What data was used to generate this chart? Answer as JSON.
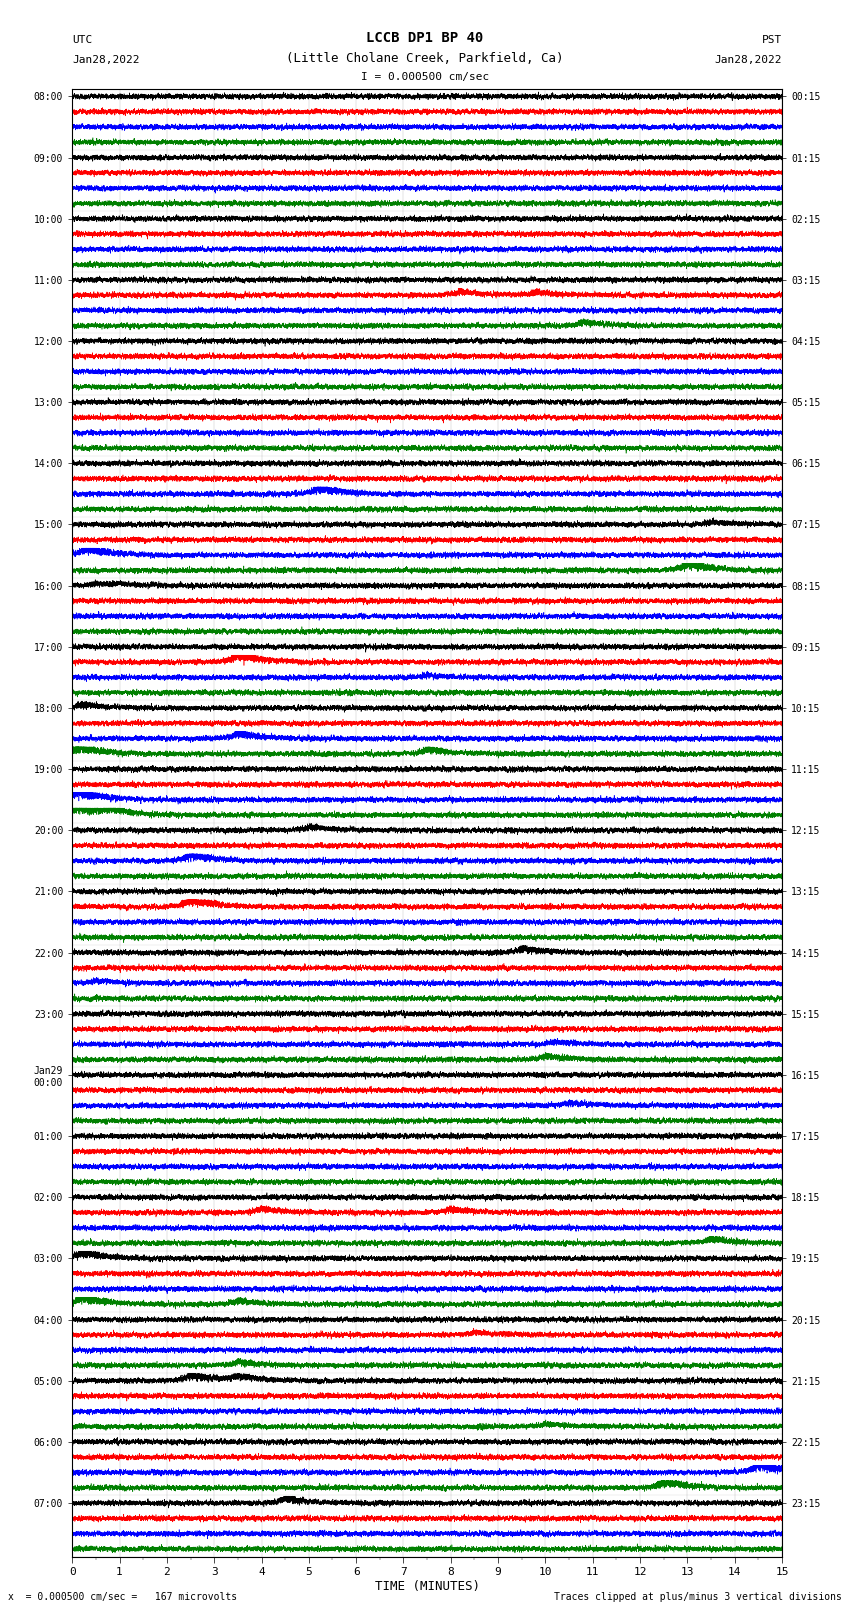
{
  "title_line1": "LCCB DP1 BP 40",
  "title_line2": "(Little Cholane Creek, Parkfield, Ca)",
  "scale_label": "I = 0.000500 cm/sec",
  "left_label": "UTC",
  "left_date": "Jan28,2022",
  "right_label": "PST",
  "right_date": "Jan28,2022",
  "xlabel": "TIME (MINUTES)",
  "footer_left": "x  = 0.000500 cm/sec =   167 microvolts",
  "footer_right": "Traces clipped at plus/minus 3 vertical divisions",
  "colors": [
    "black",
    "red",
    "blue",
    "green"
  ],
  "bg_color": "#ffffff",
  "utc_hours": [
    "08:00",
    "09:00",
    "10:00",
    "11:00",
    "12:00",
    "13:00",
    "14:00",
    "15:00",
    "16:00",
    "17:00",
    "18:00",
    "19:00",
    "20:00",
    "21:00",
    "22:00",
    "23:00",
    "Jan29\n00:00",
    "01:00",
    "02:00",
    "03:00",
    "04:00",
    "05:00",
    "06:00",
    "07:00"
  ],
  "pst_hours": [
    "00:15",
    "01:15",
    "02:15",
    "03:15",
    "04:15",
    "05:15",
    "06:15",
    "07:15",
    "08:15",
    "09:15",
    "10:15",
    "11:15",
    "12:15",
    "13:15",
    "14:15",
    "15:15",
    "16:15",
    "17:15",
    "18:15",
    "19:15",
    "20:15",
    "21:15",
    "22:15",
    "23:15"
  ],
  "n_hours": 24,
  "n_minutes": 15,
  "sample_rate": 40,
  "noise_base": 0.25,
  "clip_level": 3.0
}
